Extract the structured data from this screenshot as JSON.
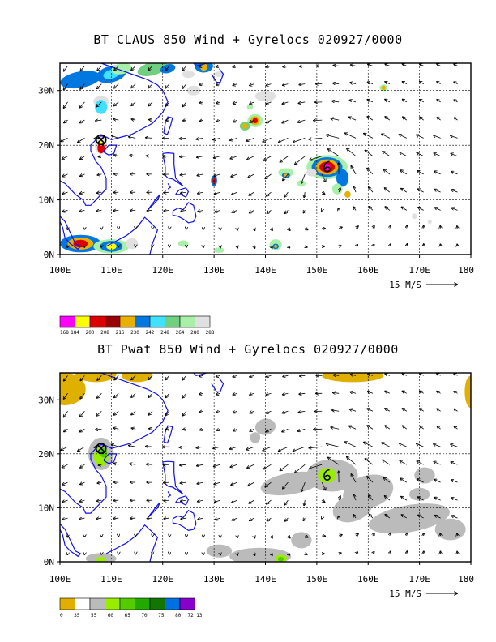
{
  "panels": [
    {
      "title": "BT CLAUS 850 Wind + Gyrelocs 020927/0000",
      "lon_labels": [
        "100E",
        "110E",
        "120E",
        "130E",
        "140E",
        "150E",
        "160E",
        "170E",
        "180"
      ],
      "lat_labels": [
        "0N",
        "10N",
        "20N",
        "30N"
      ],
      "vector_ref_label": "15 M/S",
      "colorbar_labels": [
        "168",
        "184",
        "200",
        "208",
        "216",
        "230",
        "242",
        "248",
        "264",
        "280",
        "288"
      ],
      "colorbar_colors": [
        "#ff00ff",
        "#ffff00",
        "#dd0000",
        "#990000",
        "#e8b000",
        "#0078e0",
        "#40e0ff",
        "#70d080",
        "#a8f0a8",
        "#e0e0e0"
      ]
    },
    {
      "title": "BT Pwat 850 Wind + Gyrelocs 020927/0000",
      "lon_labels": [
        "100E",
        "110E",
        "120E",
        "130E",
        "140E",
        "150E",
        "160E",
        "170E",
        "180"
      ],
      "lat_labels": [
        "0N",
        "10N",
        "20N",
        "30N"
      ],
      "vector_ref_label": "15 M/S",
      "colorbar_labels": [
        "0",
        "35",
        "55",
        "60",
        "65",
        "70",
        "75",
        "80",
        "72.13"
      ],
      "colorbar_colors": [
        "#e0b000",
        "#ffffff",
        "#bbbbbb",
        "#99ee00",
        "#55cc00",
        "#22aa00",
        "#117700",
        "#0070e0",
        "#8800cc"
      ]
    }
  ],
  "map": {
    "lon_range": [
      100,
      180
    ],
    "lat_range": [
      0,
      35
    ],
    "gyre_markers": [
      {
        "type": "circle-x",
        "lon": 108,
        "lat": 21
      },
      {
        "type": "typhoon",
        "lon": 152,
        "lat": 16
      }
    ]
  }
}
